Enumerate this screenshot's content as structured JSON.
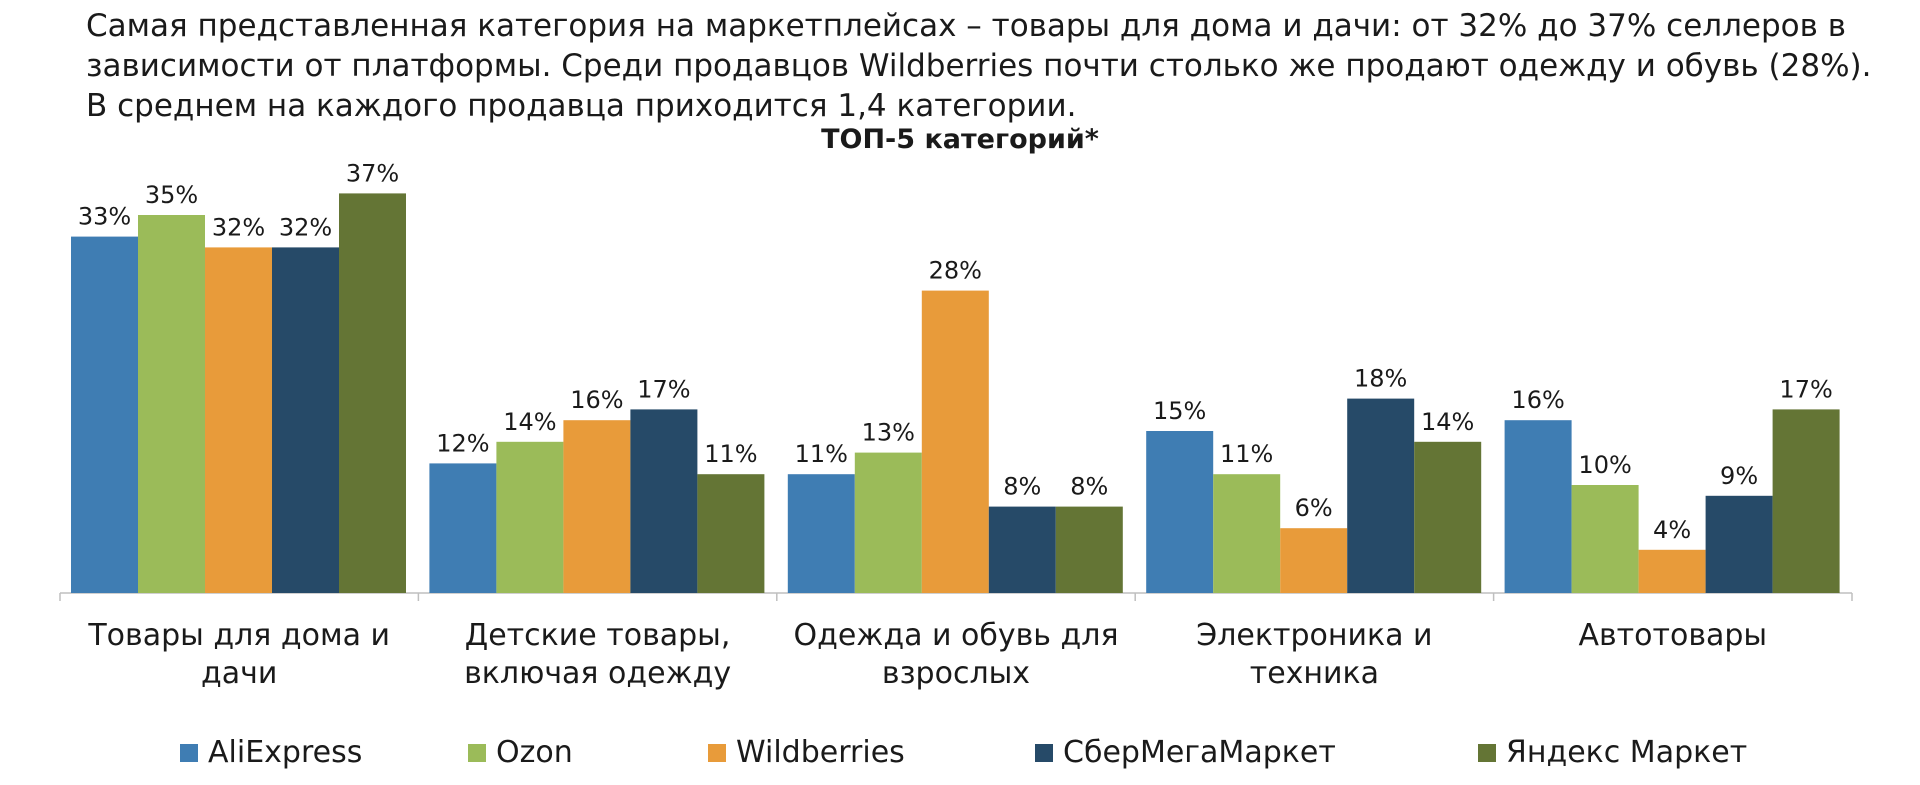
{
  "intro_text": "Самая представленная категория на маркетплейсах – товары для дома и дачи: от 32% до 37% селлеров в зависимости от платформы. Среди продавцов Wildberries почти столько же продают одежду и обувь (28%). В среднем на каждого продавца приходится 1,4 категории.",
  "chart_data": {
    "type": "bar",
    "title": "ТОП-5 категорий*",
    "categories": [
      [
        "Товары для дома и",
        "дачи"
      ],
      [
        "Детские товары,",
        "включая одежду"
      ],
      [
        "Одежда и обувь для",
        "взрослых"
      ],
      [
        "Электроника и",
        "техника"
      ],
      [
        "Автотовары"
      ]
    ],
    "series": [
      {
        "name": "AliExpress",
        "color": "#3F7DB3",
        "values": [
          33,
          12,
          11,
          15,
          16
        ]
      },
      {
        "name": "Ozon",
        "color": "#9BBB59",
        "values": [
          35,
          14,
          13,
          11,
          10
        ]
      },
      {
        "name": "Wildberries",
        "color": "#E89B3A",
        "values": [
          32,
          16,
          28,
          6,
          4
        ]
      },
      {
        "name": "СберМегаМаркет",
        "color": "#264A68",
        "values": [
          32,
          17,
          8,
          18,
          9
        ]
      },
      {
        "name": "Яндекс Маркет",
        "color": "#647535",
        "values": [
          37,
          11,
          8,
          14,
          17
        ]
      }
    ],
    "value_suffix": "%",
    "ylim": [
      0,
      40
    ],
    "grid": false,
    "legend_position": "bottom"
  }
}
